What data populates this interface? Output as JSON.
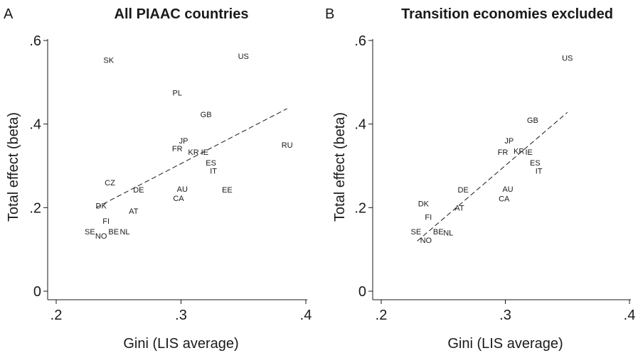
{
  "chart_data": [
    {
      "type": "scatter",
      "panel_letter": "A",
      "title": "All PIAAC countries",
      "xlabel": "Gini (LIS average)",
      "ylabel": "Total effect (beta)",
      "xlim": [
        0.2,
        0.4
      ],
      "ylim": [
        0,
        0.6
      ],
      "xticks": [
        ".2",
        ".3",
        ".4"
      ],
      "yticks": [
        "0",
        ".2",
        ".4",
        ".6"
      ],
      "xtick_values": [
        0.2,
        0.3,
        0.4
      ],
      "ytick_values": [
        0,
        0.2,
        0.4,
        0.6
      ],
      "grid": false,
      "points": [
        {
          "label": "SK",
          "x": 0.242,
          "y": 0.553
        },
        {
          "label": "US",
          "x": 0.35,
          "y": 0.563
        },
        {
          "label": "PL",
          "x": 0.297,
          "y": 0.475
        },
        {
          "label": "GB",
          "x": 0.32,
          "y": 0.423
        },
        {
          "label": "RU",
          "x": 0.385,
          "y": 0.35
        },
        {
          "label": "JP",
          "x": 0.302,
          "y": 0.36
        },
        {
          "label": "FR",
          "x": 0.297,
          "y": 0.342
        },
        {
          "label": "KR",
          "x": 0.31,
          "y": 0.333
        },
        {
          "label": "IE",
          "x": 0.319,
          "y": 0.333
        },
        {
          "label": "ES",
          "x": 0.324,
          "y": 0.308
        },
        {
          "label": "IT",
          "x": 0.326,
          "y": 0.288
        },
        {
          "label": "CZ",
          "x": 0.243,
          "y": 0.26
        },
        {
          "label": "DE",
          "x": 0.266,
          "y": 0.243
        },
        {
          "label": "AU",
          "x": 0.301,
          "y": 0.245
        },
        {
          "label": "EE",
          "x": 0.337,
          "y": 0.243
        },
        {
          "label": "CA",
          "x": 0.298,
          "y": 0.223
        },
        {
          "label": "DK",
          "x": 0.236,
          "y": 0.205
        },
        {
          "label": "AT",
          "x": 0.262,
          "y": 0.192
        },
        {
          "label": "FI",
          "x": 0.24,
          "y": 0.168
        },
        {
          "label": "SE",
          "x": 0.227,
          "y": 0.143
        },
        {
          "label": "BE",
          "x": 0.246,
          "y": 0.143
        },
        {
          "label": "NL",
          "x": 0.255,
          "y": 0.143
        },
        {
          "label": "NO",
          "x": 0.236,
          "y": 0.133
        }
      ],
      "fit_line": {
        "x": [
          0.232,
          0.385
        ],
        "y": [
          0.2,
          0.437
        ]
      }
    },
    {
      "type": "scatter",
      "panel_letter": "B",
      "title": "Transition economies excluded",
      "xlabel": "Gini (LIS average)",
      "ylabel": "Total effect (beta)",
      "xlim": [
        0.2,
        0.4
      ],
      "ylim": [
        0,
        0.6
      ],
      "xticks": [
        ".2",
        ".3",
        ".4"
      ],
      "yticks": [
        "0",
        ".2",
        ".4",
        ".6"
      ],
      "xtick_values": [
        0.2,
        0.3,
        0.4
      ],
      "ytick_values": [
        0,
        0.2,
        0.4,
        0.6
      ],
      "grid": false,
      "points": [
        {
          "label": "US",
          "x": 0.35,
          "y": 0.558
        },
        {
          "label": "GB",
          "x": 0.322,
          "y": 0.41
        },
        {
          "label": "JP",
          "x": 0.303,
          "y": 0.36
        },
        {
          "label": "FR",
          "x": 0.298,
          "y": 0.333
        },
        {
          "label": "KR",
          "x": 0.311,
          "y": 0.336
        },
        {
          "label": "IE",
          "x": 0.319,
          "y": 0.333
        },
        {
          "label": "ES",
          "x": 0.324,
          "y": 0.308
        },
        {
          "label": "IT",
          "x": 0.327,
          "y": 0.288
        },
        {
          "label": "DE",
          "x": 0.266,
          "y": 0.243
        },
        {
          "label": "AU",
          "x": 0.302,
          "y": 0.245
        },
        {
          "label": "CA",
          "x": 0.299,
          "y": 0.222
        },
        {
          "label": "DK",
          "x": 0.234,
          "y": 0.21
        },
        {
          "label": "AT",
          "x": 0.263,
          "y": 0.2
        },
        {
          "label": "FI",
          "x": 0.238,
          "y": 0.178
        },
        {
          "label": "SE",
          "x": 0.228,
          "y": 0.143
        },
        {
          "label": "BE",
          "x": 0.246,
          "y": 0.143
        },
        {
          "label": "NL",
          "x": 0.254,
          "y": 0.14
        },
        {
          "label": "NO",
          "x": 0.236,
          "y": 0.122
        }
      ],
      "fit_line": {
        "x": [
          0.229,
          0.35
        ],
        "y": [
          0.12,
          0.428
        ]
      }
    }
  ]
}
